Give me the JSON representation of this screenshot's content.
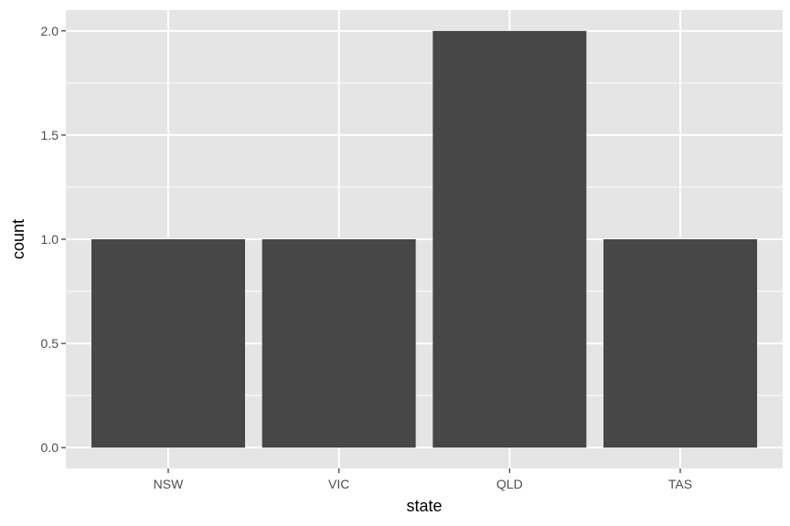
{
  "chart_data": {
    "type": "bar",
    "title": "",
    "xlabel": "state",
    "ylabel": "count",
    "categories": [
      "NSW",
      "VIC",
      "QLD",
      "TAS"
    ],
    "values": [
      1,
      1,
      2,
      1
    ],
    "ylim": [
      -0.1,
      2.1
    ],
    "y_ticks": [
      0.0,
      0.5,
      1.0,
      1.5,
      2.0
    ],
    "y_tick_labels": [
      "0.0",
      "0.5",
      "1.0",
      "1.5",
      "2.0"
    ],
    "grid": true,
    "legend": "none",
    "colors": {
      "panel_background": "#E5E5E5",
      "grid_line": "#FFFFFF",
      "bar_fill": "#474747",
      "tick_mark": "#333333",
      "tick_text": "#4D4D4D",
      "axis_title": "#000000"
    }
  }
}
